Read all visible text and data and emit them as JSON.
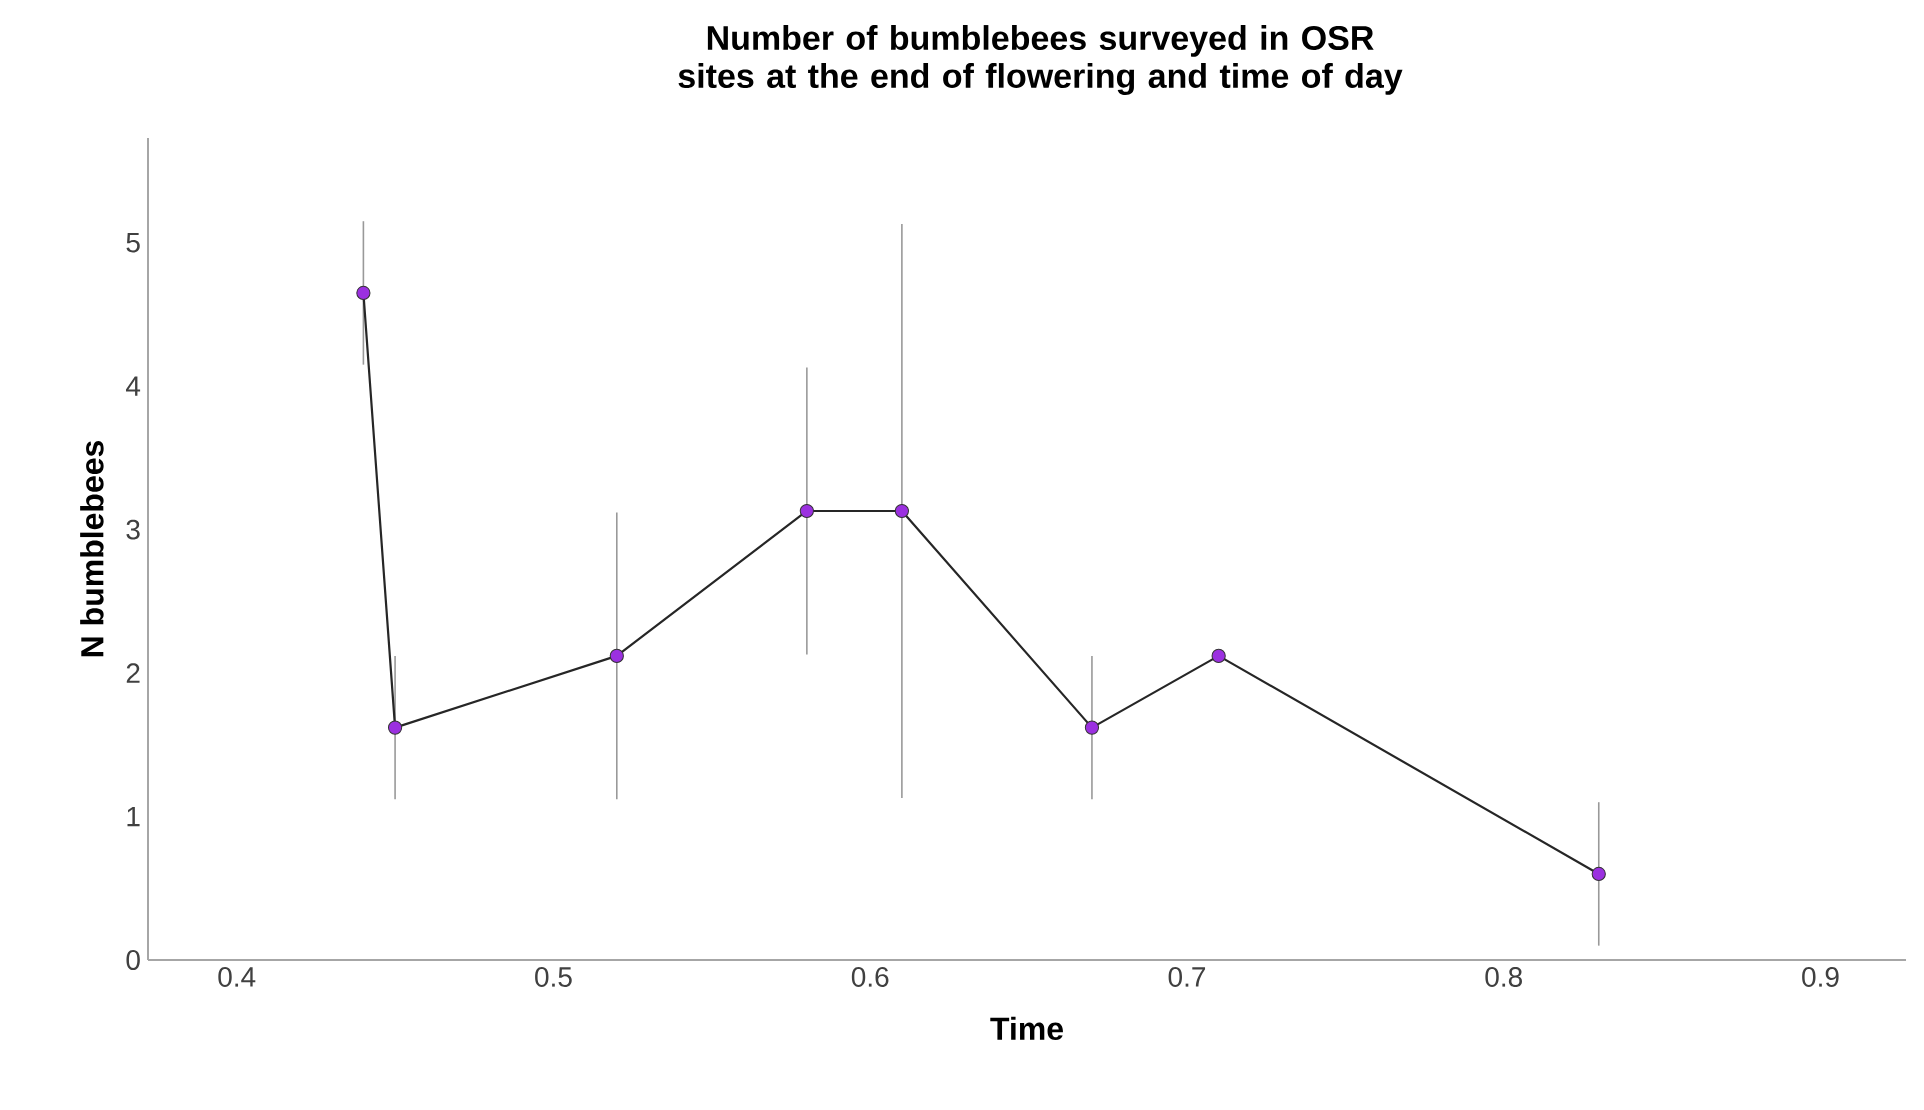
{
  "chart_data": {
    "type": "line",
    "title": "Number of bumblebees surveyed in OSR sites at the end of flowering and time of day",
    "xlabel": "Time",
    "ylabel": "N bumblebees",
    "x": [
      0.44,
      0.45,
      0.52,
      0.58,
      0.61,
      0.67,
      0.71,
      0.83
    ],
    "values": [
      4.65,
      1.62,
      2.12,
      3.13,
      3.13,
      1.62,
      2.12,
      0.6
    ],
    "errors": [
      0.5,
      0.5,
      1,
      1,
      2,
      0.5,
      null,
      0.5
    ],
    "color": "#9b30e0",
    "marker": "circle",
    "line_style": "solid",
    "xlim": [
      0.372,
      0.927
    ],
    "ylim": [
      0,
      5.73
    ],
    "xticks": [
      0.4,
      0.5,
      0.6,
      0.7,
      0.8,
      0.9
    ],
    "yticks": [
      0,
      1,
      2,
      3,
      4,
      5
    ]
  }
}
